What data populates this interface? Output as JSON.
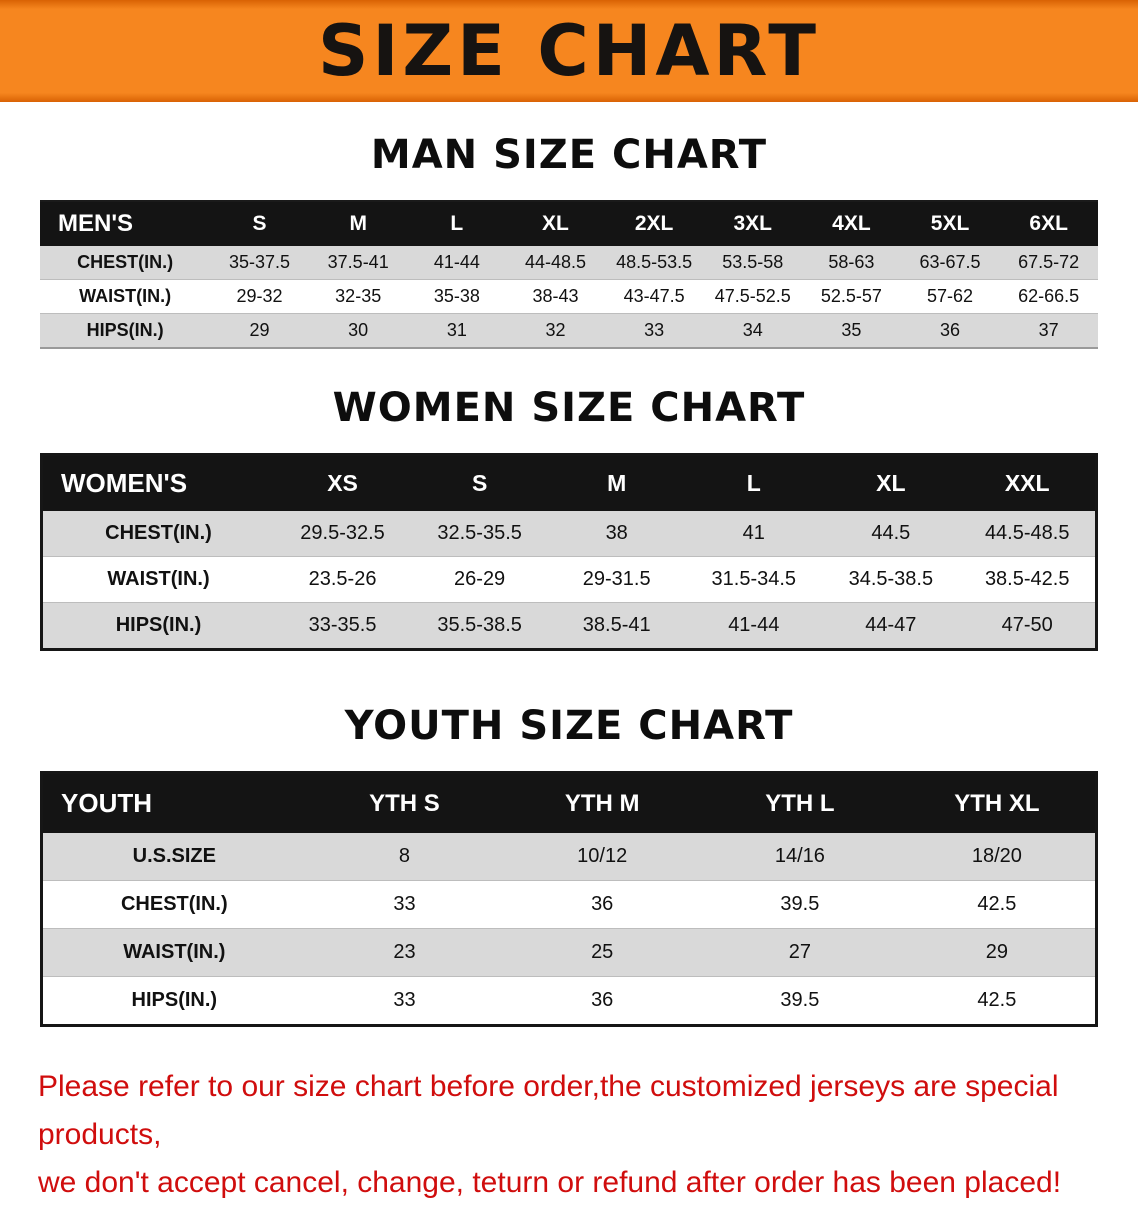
{
  "banner": {
    "title": "SIZE CHART"
  },
  "sections": {
    "men": {
      "heading": "MAN SIZE CHART",
      "table": {
        "header": [
          "MEN'S",
          "S",
          "M",
          "L",
          "XL",
          "2XL",
          "3XL",
          "4XL",
          "5XL",
          "6XL"
        ],
        "rows": [
          [
            "CHEST(IN.)",
            "35-37.5",
            "37.5-41",
            "41-44",
            "44-48.5",
            "48.5-53.5",
            "53.5-58",
            "58-63",
            "63-67.5",
            "67.5-72"
          ],
          [
            "WAIST(IN.)",
            "29-32",
            "32-35",
            "35-38",
            "38-43",
            "43-47.5",
            "47.5-52.5",
            "52.5-57",
            "57-62",
            "62-66.5"
          ],
          [
            "HIPS(IN.)",
            "29",
            "30",
            "31",
            "32",
            "33",
            "34",
            "35",
            "36",
            "37"
          ]
        ]
      }
    },
    "women": {
      "heading": "WOMEN SIZE CHART",
      "table": {
        "header": [
          "WOMEN'S",
          "XS",
          "S",
          "M",
          "L",
          "XL",
          "XXL"
        ],
        "rows": [
          [
            "CHEST(IN.)",
            "29.5-32.5",
            "32.5-35.5",
            "38",
            "41",
            "44.5",
            "44.5-48.5"
          ],
          [
            "WAIST(IN.)",
            "23.5-26",
            "26-29",
            "29-31.5",
            "31.5-34.5",
            "34.5-38.5",
            "38.5-42.5"
          ],
          [
            "HIPS(IN.)",
            "33-35.5",
            "35.5-38.5",
            "38.5-41",
            "41-44",
            "44-47",
            "47-50"
          ]
        ]
      }
    },
    "youth": {
      "heading": "YOUTH SIZE CHART",
      "table": {
        "header": [
          "YOUTH",
          "YTH S",
          "YTH M",
          "YTH L",
          "YTH XL"
        ],
        "rows": [
          [
            "U.S.SIZE",
            "8",
            "10/12",
            "14/16",
            "18/20"
          ],
          [
            "CHEST(IN.)",
            "33",
            "36",
            "39.5",
            "42.5"
          ],
          [
            "WAIST(IN.)",
            "23",
            "25",
            "27",
            "29"
          ],
          [
            "HIPS(IN.)",
            "33",
            "36",
            "39.5",
            "42.5"
          ]
        ]
      }
    }
  },
  "disclaimer": {
    "line1": "Please refer to our size chart before order,the customized jerseys are special products,",
    "line2": "we don't accept cancel, change, teturn or refund after order has been placed!"
  },
  "colors": {
    "banner_orange": "#f6861f",
    "header_black": "#141414",
    "row_gray": "#d9d9d9",
    "disclaimer_red": "#d00d0d"
  }
}
